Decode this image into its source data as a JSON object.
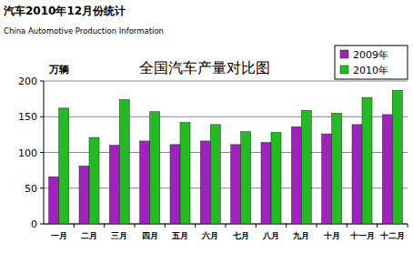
{
  "header": {
    "title": "汽车2010年12月份统计",
    "subtitle": "China Automotive Production Information"
  },
  "chart_data": {
    "type": "bar",
    "title": "全国汽车产量对比图",
    "y_label": "万辆",
    "categories": [
      "一月",
      "二月",
      "三月",
      "四月",
      "五月",
      "六月",
      "七月",
      "八月",
      "九月",
      "十月",
      "十一月",
      "十二月"
    ],
    "series": [
      {
        "name": "2009年",
        "color": "#a020c0",
        "values": [
          66,
          81,
          110,
          116,
          111,
          116,
          111,
          114,
          136,
          126,
          139,
          153
        ]
      },
      {
        "name": "2010年",
        "color": "#22bb22",
        "values": [
          162,
          121,
          174,
          157,
          142,
          139,
          129,
          128,
          159,
          155,
          177,
          187
        ]
      }
    ],
    "ylim": [
      0,
      200
    ],
    "yticks": [
      0,
      50,
      100,
      150,
      200
    ],
    "grid": true,
    "legend": "top-right"
  }
}
